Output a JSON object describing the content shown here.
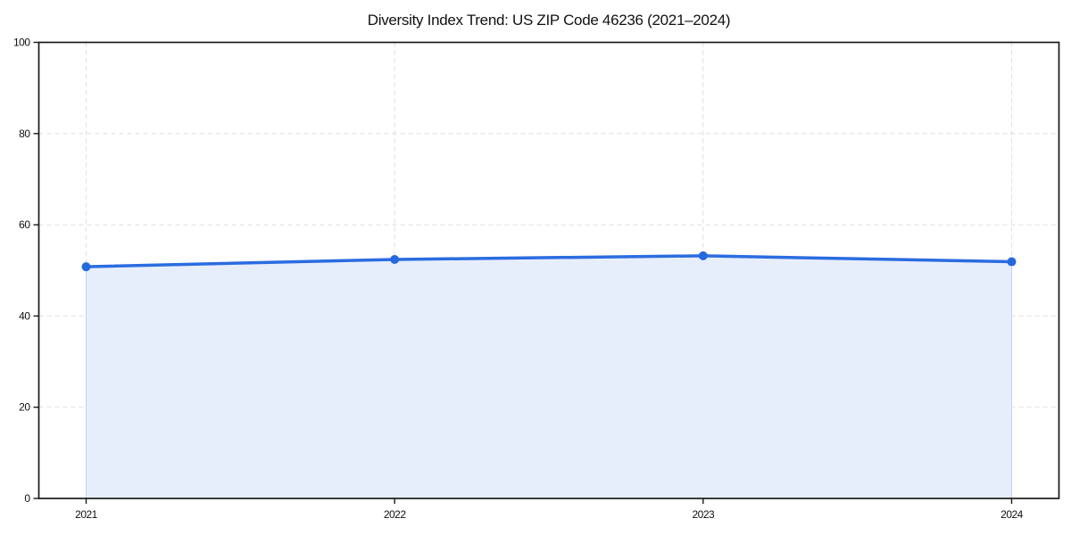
{
  "page": {
    "title": "Diversity Index Trend: US ZIP Code 46236 (2021–2024)"
  },
  "chart_data": {
    "type": "area",
    "title": "Diversity Index Trend: US ZIP Code 46236 (2021–2024)",
    "x": [
      "2021",
      "2022",
      "2023",
      "2024"
    ],
    "values": [
      50.8,
      52.4,
      53.2,
      51.9
    ],
    "series_label": "Diversity Index",
    "xlabel": "",
    "ylabel": "",
    "ylim": [
      0,
      100
    ],
    "yticks": [
      0,
      20,
      40,
      60,
      80,
      100
    ],
    "grid": true,
    "grid_style": "dashed",
    "legend_position": "none",
    "colors": {
      "line": "#2B6CE0",
      "marker": "#2668DE",
      "fill": "#E7EEFB",
      "fill_edge": "#BFD4F2",
      "grid": "#DDDDDD",
      "axis": "#1A1A1A",
      "text": "#111111",
      "background": "#FFFFFF"
    }
  }
}
